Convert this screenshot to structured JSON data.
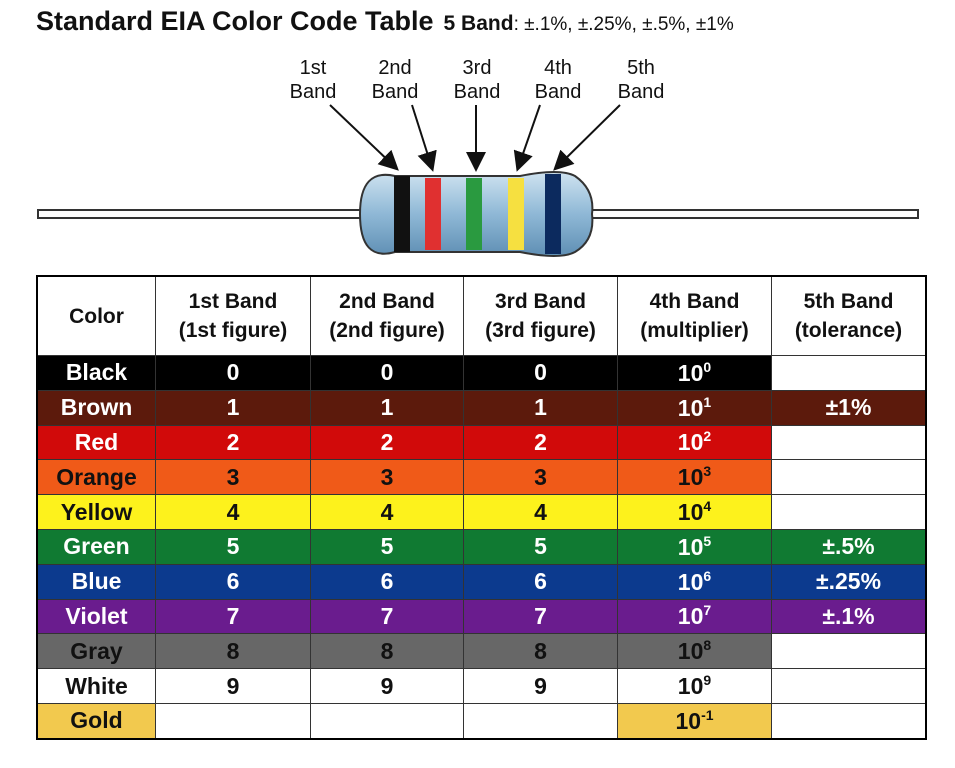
{
  "title": "Standard EIA Color Code Table",
  "subtitle": {
    "bands": "5 Band",
    "tolerances": ": ±.1%, ±.25%, ±.5%, ±1%"
  },
  "diagram": {
    "band_labels": [
      {
        "line1": "1st",
        "line2": "Band"
      },
      {
        "line1": "2nd",
        "line2": "Band"
      },
      {
        "line1": "3rd",
        "line2": "Band"
      },
      {
        "line1": "4th",
        "line2": "Band"
      },
      {
        "line1": "5th",
        "line2": "Band"
      }
    ]
  },
  "table": {
    "headers": [
      [
        "Color"
      ],
      [
        "1st Band",
        "(1st figure)"
      ],
      [
        "2nd Band",
        "(2nd figure)"
      ],
      [
        "3rd Band",
        "(3rd figure)"
      ],
      [
        "4th Band",
        "(multiplier)"
      ],
      [
        "5th Band",
        "(tolerance)"
      ]
    ],
    "rows": [
      {
        "name": "Black",
        "color": "#000000",
        "text_color": "#ffffff",
        "figures": [
          "0",
          "0",
          "0"
        ],
        "multiplier": {
          "base": "10",
          "exponent": "0"
        },
        "tolerance": null
      },
      {
        "name": "Brown",
        "color": "#5c1a0c",
        "text_color": "#ffffff",
        "figures": [
          "1",
          "1",
          "1"
        ],
        "multiplier": {
          "base": "10",
          "exponent": "1"
        },
        "tolerance": "±1%"
      },
      {
        "name": "Red",
        "color": "#d10a0a",
        "text_color": "#ffffff",
        "figures": [
          "2",
          "2",
          "2"
        ],
        "multiplier": {
          "base": "10",
          "exponent": "2"
        },
        "tolerance": null
      },
      {
        "name": "Orange",
        "color": "#f05a18",
        "text_color": "#111111",
        "figures": [
          "3",
          "3",
          "3"
        ],
        "multiplier": {
          "base": "10",
          "exponent": "3"
        },
        "tolerance": null
      },
      {
        "name": "Yellow",
        "color": "#fdf21c",
        "text_color": "#111111",
        "figures": [
          "4",
          "4",
          "4"
        ],
        "multiplier": {
          "base": "10",
          "exponent": "4"
        },
        "tolerance": null
      },
      {
        "name": "Green",
        "color": "#107a32",
        "text_color": "#ffffff",
        "figures": [
          "5",
          "5",
          "5"
        ],
        "multiplier": {
          "base": "10",
          "exponent": "5"
        },
        "tolerance": "±.5%"
      },
      {
        "name": "Blue",
        "color": "#0c3a8e",
        "text_color": "#ffffff",
        "figures": [
          "6",
          "6",
          "6"
        ],
        "multiplier": {
          "base": "10",
          "exponent": "6"
        },
        "tolerance": "±.25%"
      },
      {
        "name": "Violet",
        "color": "#6a1c8e",
        "text_color": "#ffffff",
        "figures": [
          "7",
          "7",
          "7"
        ],
        "multiplier": {
          "base": "10",
          "exponent": "7"
        },
        "tolerance": "±.1%"
      },
      {
        "name": "Gray",
        "color": "#676767",
        "text_color": "#111111",
        "figures": [
          "8",
          "8",
          "8"
        ],
        "multiplier": {
          "base": "10",
          "exponent": "8"
        },
        "tolerance": null
      },
      {
        "name": "White",
        "color": "#ffffff",
        "text_color": "#111111",
        "figures": [
          "9",
          "9",
          "9"
        ],
        "multiplier": {
          "base": "10",
          "exponent": "9"
        },
        "tolerance": null
      },
      {
        "name": "Gold",
        "color": "#f2c94e",
        "text_color": "#111111",
        "figures": [
          null,
          null,
          null
        ],
        "multiplier": {
          "base": "10",
          "exponent": "-1"
        },
        "tolerance": null
      }
    ]
  }
}
